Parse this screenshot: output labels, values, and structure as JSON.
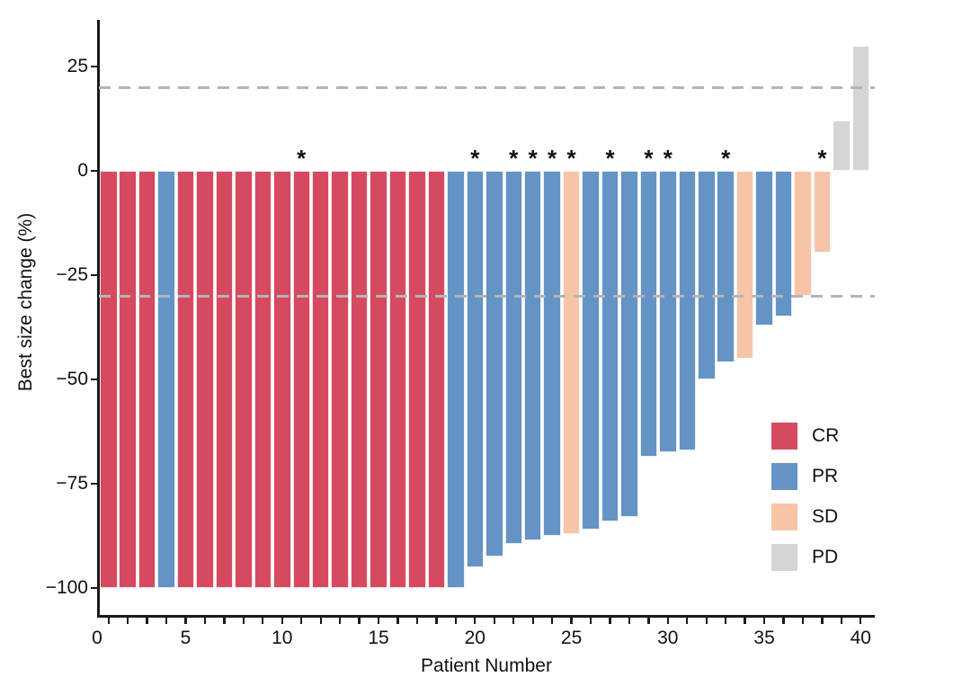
{
  "chart_data": {
    "type": "bar",
    "title": "",
    "xlabel": "Patient Number",
    "ylabel": "Best size change (%)",
    "xlim": [
      0.5,
      40.73
    ],
    "ylim": [
      -106.7,
      36.2
    ],
    "grid": false,
    "x_ticks": {
      "labeled_values": [
        0,
        5,
        10,
        15,
        20,
        25,
        30,
        35,
        40
      ],
      "labels": [
        "0",
        "5",
        "10",
        "15",
        "20",
        "25",
        "30",
        "35",
        "40"
      ],
      "minor_tick_every": 1,
      "minor_tick_range": [
        1,
        40
      ]
    },
    "y_ticks": {
      "values": [
        25,
        0,
        -25,
        -50,
        -75,
        -100
      ],
      "labels": [
        "25",
        "0",
        "−25",
        "−50",
        "−75",
        "−100"
      ]
    },
    "reference_lines": [
      {
        "y": 20,
        "style": "dashed",
        "color": "#b5b5b5"
      },
      {
        "y": -30,
        "style": "dashed",
        "color": "#b5b5b5"
      }
    ],
    "legend": {
      "position": "inside-right",
      "items": [
        {
          "label": "CR",
          "color": "#d64a60"
        },
        {
          "label": "PR",
          "color": "#6494c6"
        },
        {
          "label": "SD",
          "color": "#f7c4a8"
        },
        {
          "label": "PD",
          "color": "#d5d5d5"
        }
      ]
    },
    "annotation_marker": "*",
    "bar_width_units": 0.91,
    "patients": [
      {
        "patient": 1,
        "value": -100,
        "response": "CR",
        "marked": false
      },
      {
        "patient": 2,
        "value": -100,
        "response": "CR",
        "marked": false
      },
      {
        "patient": 3,
        "value": -100,
        "response": "CR",
        "marked": false
      },
      {
        "patient": 4,
        "value": -100,
        "response": "PR",
        "marked": false
      },
      {
        "patient": 5,
        "value": -100,
        "response": "CR",
        "marked": false
      },
      {
        "patient": 6,
        "value": -100,
        "response": "CR",
        "marked": false
      },
      {
        "patient": 7,
        "value": -100,
        "response": "CR",
        "marked": false
      },
      {
        "patient": 8,
        "value": -100,
        "response": "CR",
        "marked": false
      },
      {
        "patient": 9,
        "value": -100,
        "response": "CR",
        "marked": false
      },
      {
        "patient": 10,
        "value": -100,
        "response": "CR",
        "marked": false
      },
      {
        "patient": 11,
        "value": -100,
        "response": "CR",
        "marked": true
      },
      {
        "patient": 12,
        "value": -100,
        "response": "CR",
        "marked": false
      },
      {
        "patient": 13,
        "value": -100,
        "response": "CR",
        "marked": false
      },
      {
        "patient": 14,
        "value": -100,
        "response": "CR",
        "marked": false
      },
      {
        "patient": 15,
        "value": -100,
        "response": "CR",
        "marked": false
      },
      {
        "patient": 16,
        "value": -100,
        "response": "CR",
        "marked": false
      },
      {
        "patient": 17,
        "value": -100,
        "response": "CR",
        "marked": false
      },
      {
        "patient": 18,
        "value": -100,
        "response": "CR",
        "marked": false
      },
      {
        "patient": 19,
        "value": -100,
        "response": "PR",
        "marked": false
      },
      {
        "patient": 20,
        "value": -95,
        "response": "PR",
        "marked": true
      },
      {
        "patient": 21,
        "value": -92.5,
        "response": "PR",
        "marked": false
      },
      {
        "patient": 22,
        "value": -89.5,
        "response": "PR",
        "marked": true
      },
      {
        "patient": 23,
        "value": -88.5,
        "response": "PR",
        "marked": true
      },
      {
        "patient": 24,
        "value": -87.5,
        "response": "PR",
        "marked": true
      },
      {
        "patient": 25,
        "value": -87,
        "response": "SD",
        "marked": true
      },
      {
        "patient": 26,
        "value": -86,
        "response": "PR",
        "marked": false
      },
      {
        "patient": 27,
        "value": -84,
        "response": "PR",
        "marked": true
      },
      {
        "patient": 28,
        "value": -83,
        "response": "PR",
        "marked": false
      },
      {
        "patient": 29,
        "value": -68.5,
        "response": "PR",
        "marked": true
      },
      {
        "patient": 30,
        "value": -67.5,
        "response": "PR",
        "marked": true
      },
      {
        "patient": 31,
        "value": -67,
        "response": "PR",
        "marked": false
      },
      {
        "patient": 32,
        "value": -50,
        "response": "PR",
        "marked": false
      },
      {
        "patient": 33,
        "value": -46,
        "response": "PR",
        "marked": true
      },
      {
        "patient": 34,
        "value": -45,
        "response": "SD",
        "marked": false
      },
      {
        "patient": 35,
        "value": -37,
        "response": "PR",
        "marked": false
      },
      {
        "patient": 36,
        "value": -35,
        "response": "PR",
        "marked": false
      },
      {
        "patient": 37,
        "value": -30,
        "response": "SD",
        "marked": false
      },
      {
        "patient": 38,
        "value": -19.5,
        "response": "SD",
        "marked": true
      },
      {
        "patient": 39,
        "value": 12,
        "response": "PD",
        "marked": false
      },
      {
        "patient": 40,
        "value": 30,
        "response": "PD",
        "marked": false
      }
    ]
  }
}
